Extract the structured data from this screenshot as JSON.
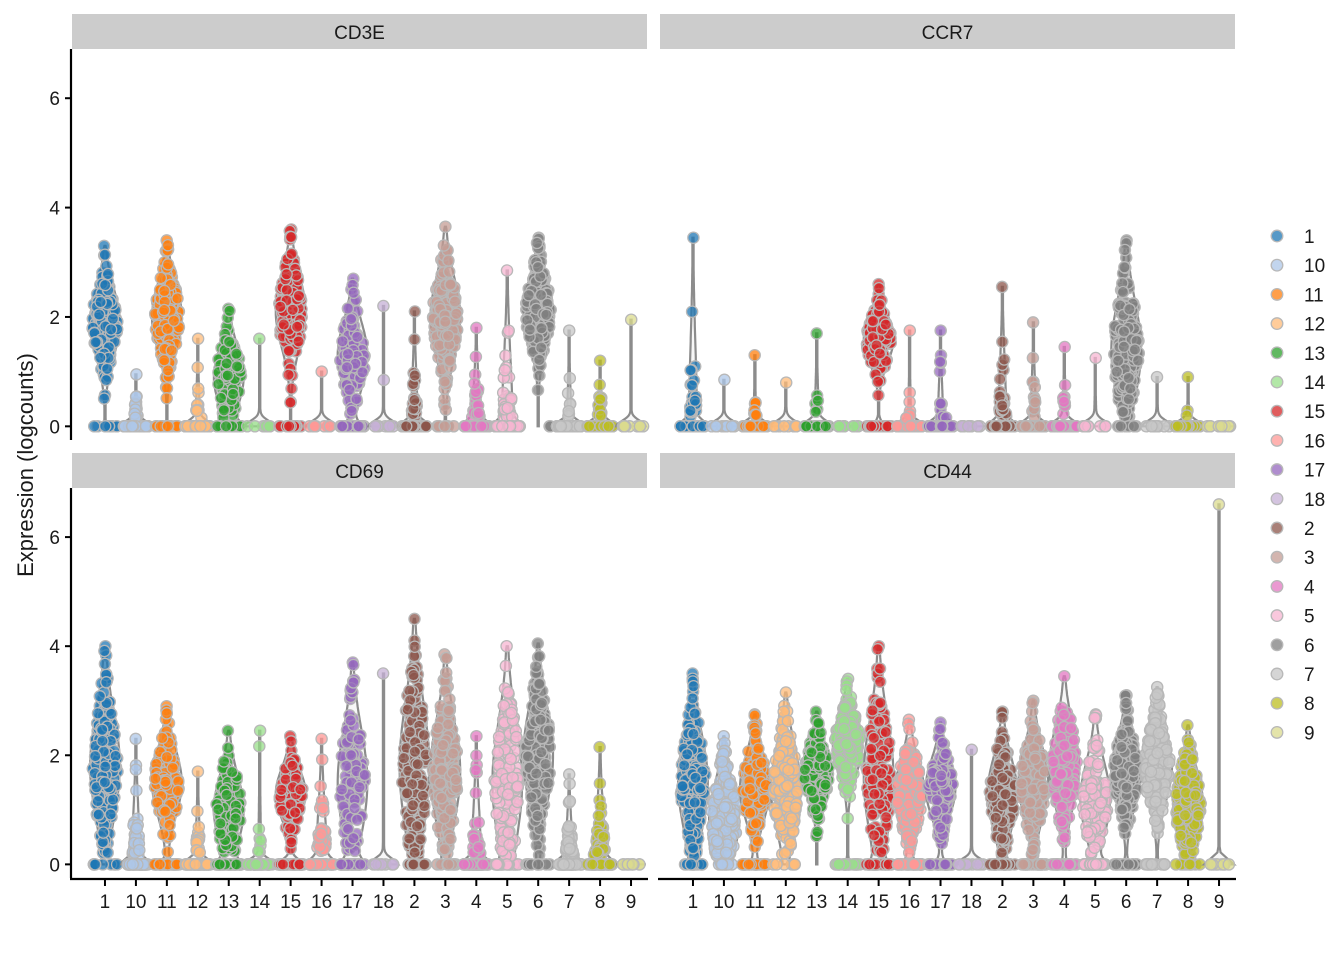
{
  "chart_data": {
    "type": "violin",
    "ylabel": "Expression (logcounts)",
    "xlabel": "",
    "ylim": [
      -0.25,
      6.9
    ],
    "yticks": [
      0,
      2,
      4,
      6
    ],
    "grid": false,
    "legend_position": "right",
    "categories": [
      "1",
      "10",
      "11",
      "12",
      "13",
      "14",
      "15",
      "16",
      "17",
      "18",
      "2",
      "3",
      "4",
      "5",
      "6",
      "7",
      "8",
      "9"
    ],
    "colors": {
      "1": "#1f77b4",
      "10": "#aec7e8",
      "11": "#ff7f0e",
      "12": "#ffbb78",
      "13": "#2ca02c",
      "14": "#98df8a",
      "15": "#d62728",
      "16": "#ff9896",
      "17": "#9467bd",
      "18": "#c5b0d5",
      "2": "#8c564b",
      "3": "#c49c94",
      "4": "#e377c2",
      "5": "#f7b6d2",
      "6": "#7f7f7f",
      "7": "#c7c7c7",
      "8": "#bcbd22",
      "9": "#dbdb8d"
    },
    "panels": [
      {
        "title": "CD3E",
        "max": [
          3.3,
          0.95,
          3.4,
          1.6,
          2.15,
          1.6,
          3.6,
          1.0,
          2.7,
          2.2,
          2.1,
          3.65,
          1.8,
          2.85,
          3.45,
          1.75,
          1.2,
          1.95
        ],
        "median": [
          1.9,
          0.0,
          2.0,
          0.0,
          0.9,
          0.0,
          2.1,
          0.0,
          1.3,
          0.0,
          0.0,
          2.0,
          0.0,
          0.0,
          2.1,
          0.0,
          0.0,
          0.0
        ],
        "frac_zero": [
          0.05,
          0.85,
          0.05,
          0.85,
          0.35,
          0.95,
          0.05,
          0.95,
          0.25,
          0.95,
          0.75,
          0.03,
          0.7,
          0.6,
          0.03,
          0.85,
          0.8,
          0.97
        ]
      },
      {
        "title": "CCR7",
        "max": [
          3.45,
          0.85,
          1.3,
          0.8,
          1.7,
          0.0,
          2.6,
          1.75,
          1.75,
          0.0,
          2.55,
          1.9,
          1.45,
          1.25,
          3.4,
          0.9,
          0.9,
          0.0
        ],
        "median": [
          0.0,
          0.0,
          0.0,
          0.0,
          0.0,
          0.0,
          1.6,
          0.0,
          0.0,
          0.0,
          0.0,
          0.0,
          0.0,
          0.0,
          1.4,
          0.0,
          0.0,
          0.0
        ],
        "frac_zero": [
          0.7,
          0.95,
          0.9,
          0.92,
          0.85,
          1.0,
          0.2,
          0.9,
          0.8,
          1.0,
          0.7,
          0.8,
          0.85,
          0.92,
          0.05,
          0.92,
          0.9,
          1.0
        ]
      },
      {
        "title": "CD69",
        "max": [
          4.0,
          2.3,
          2.9,
          1.7,
          2.45,
          2.45,
          2.35,
          2.3,
          3.7,
          3.5,
          4.5,
          3.85,
          2.35,
          4.0,
          4.05,
          1.65,
          2.15,
          0.0
        ],
        "median": [
          1.8,
          0.0,
          1.5,
          0.0,
          1.0,
          0.0,
          1.3,
          0.0,
          1.5,
          0.0,
          1.8,
          1.7,
          0.0,
          1.5,
          2.0,
          0.0,
          0.0,
          0.0
        ],
        "frac_zero": [
          0.05,
          0.7,
          0.2,
          0.8,
          0.3,
          0.9,
          0.4,
          0.6,
          0.3,
          0.95,
          0.05,
          0.05,
          0.65,
          0.15,
          0.05,
          0.7,
          0.6,
          1.0
        ]
      },
      {
        "title": "CD44",
        "max": [
          3.5,
          2.35,
          2.75,
          3.15,
          2.8,
          3.4,
          4.0,
          2.65,
          2.6,
          2.1,
          2.8,
          3.0,
          3.45,
          2.75,
          3.1,
          3.25,
          2.55,
          6.6
        ],
        "median": [
          1.5,
          0.8,
          1.4,
          1.4,
          1.7,
          2.2,
          1.6,
          1.3,
          1.4,
          0.0,
          1.3,
          1.5,
          1.8,
          1.2,
          1.7,
          1.8,
          1.1,
          0.0
        ],
        "frac_zero": [
          0.05,
          0.05,
          0.15,
          0.02,
          0.0,
          0.1,
          0.2,
          0.2,
          0.2,
          0.95,
          0.2,
          0.15,
          0.1,
          0.3,
          0.1,
          0.05,
          0.05,
          0.97
        ]
      }
    ],
    "legend": [
      "1",
      "10",
      "11",
      "12",
      "13",
      "14",
      "15",
      "16",
      "17",
      "18",
      "2",
      "3",
      "4",
      "5",
      "6",
      "7",
      "8",
      "9"
    ]
  }
}
